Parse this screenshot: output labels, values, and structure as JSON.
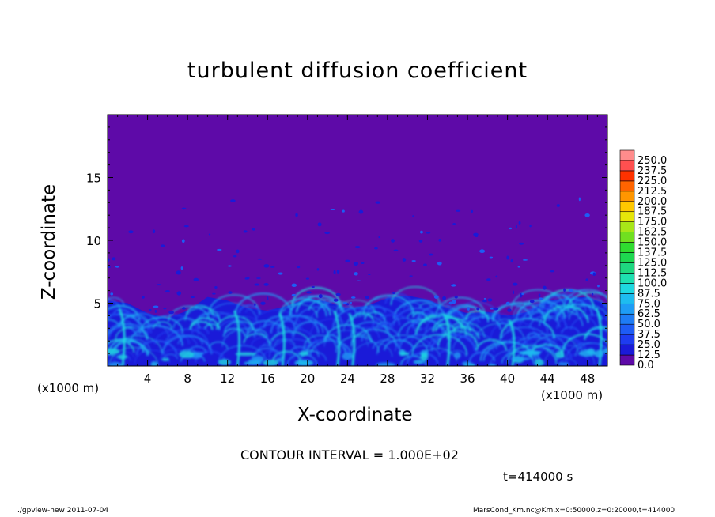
{
  "chart_data": {
    "type": "heatmap",
    "title": "turbulent diffusion coefficient",
    "xlabel": "X-coordinate",
    "ylabel": "Z-coordinate",
    "x_unit": "(×1000 m)",
    "y_unit": "(×1000 m)",
    "xlim": [
      0,
      50
    ],
    "ylim": [
      0,
      20
    ],
    "x_ticks": [
      "4",
      "8",
      "12",
      "16",
      "20",
      "24",
      "28",
      "32",
      "36",
      "40",
      "44",
      "48"
    ],
    "y_ticks": [
      "5",
      "10",
      "15"
    ],
    "colorbar_levels": [
      "0.0",
      "12.5",
      "25.0",
      "37.5",
      "50.0",
      "62.5",
      "75.0",
      "87.5",
      "100.0",
      "112.5",
      "125.0",
      "137.5",
      "150.0",
      "162.5",
      "175.0",
      "187.5",
      "200.0",
      "212.5",
      "225.0",
      "237.5",
      "250.0"
    ],
    "colorbar_colors": [
      "#5e0aa8",
      "#1a1ad8",
      "#1e3cf0",
      "#1e5cf5",
      "#1e7cf5",
      "#1e9cf5",
      "#1ebcf0",
      "#1ed8e0",
      "#1ee0b0",
      "#1ed880",
      "#1ed850",
      "#30dc30",
      "#70e020",
      "#a8e618",
      "#e6e60a",
      "#ffc800",
      "#ff9600",
      "#ff6400",
      "#ff3200",
      "#ff5050",
      "#ff8c8c"
    ],
    "background_color": "#5e0aa8",
    "boundary_layer_top_approx": [
      5.2,
      5.0,
      4.2,
      3.8,
      4.4,
      5.5,
      5.2,
      4.6,
      4.4,
      4.8,
      5.4,
      5.1,
      4.6,
      4.8,
      5.4,
      5.6,
      5.3,
      4.6,
      4.2,
      4.3,
      4.0,
      4.3,
      5.2,
      5.4,
      5.5,
      4.9
    ]
  },
  "annotations": {
    "contour_interval": "CONTOUR INTERVAL = 1.000E+02",
    "time": "t=414000 s",
    "unit_left": "(x1000 m)",
    "unit_right": "(x1000 m)"
  },
  "footer": {
    "left": "./gpview-new   2011-07-04",
    "right": "MarsCond_Km.nc@Km,x=0:50000,z=0:20000,t=414000"
  }
}
